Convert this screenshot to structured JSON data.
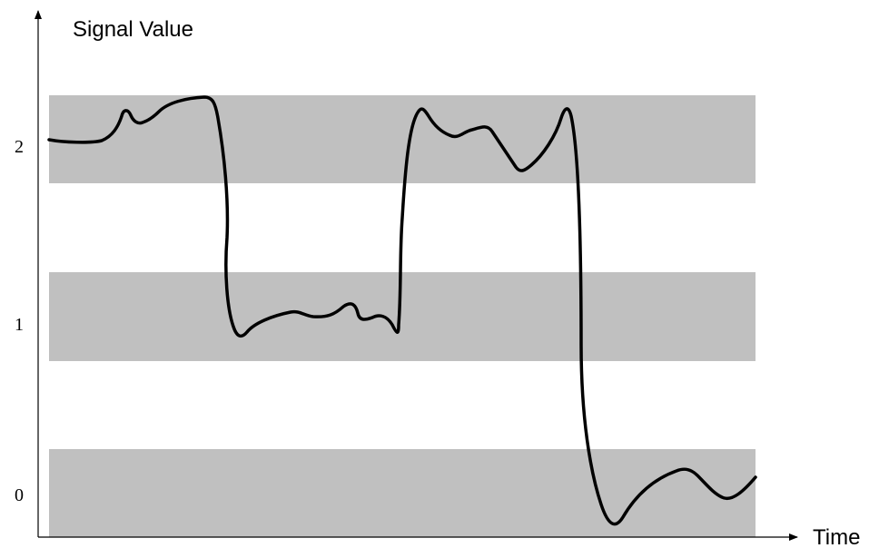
{
  "chart_data": {
    "type": "line",
    "ylabel": "Signal Value",
    "xlabel": "Time",
    "yticks": [
      "0",
      "1",
      "2"
    ],
    "band_color": "#c0c0c0",
    "line_color": "#000000"
  }
}
